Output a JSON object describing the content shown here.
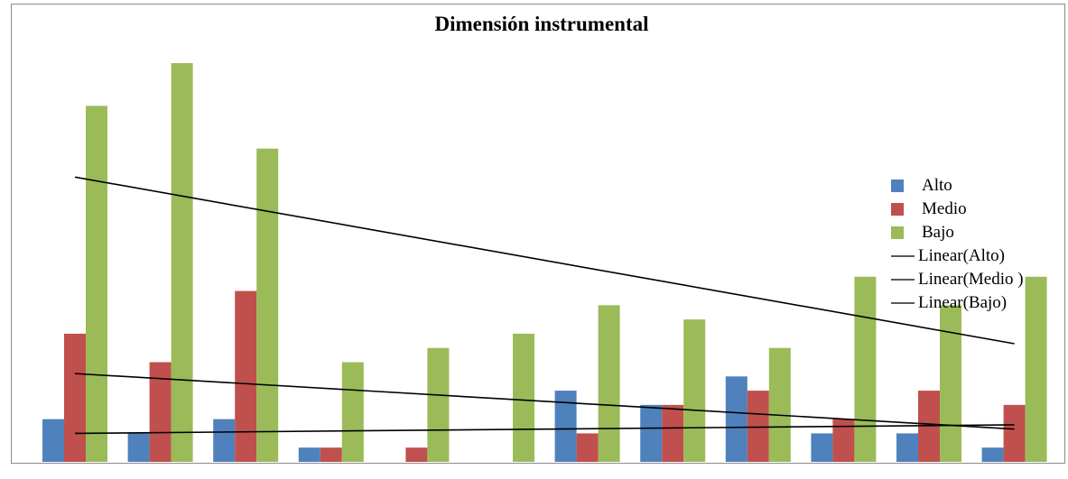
{
  "chart_data": {
    "type": "bar",
    "title": "Dimensión instrumental",
    "xlabel": "",
    "ylabel": "",
    "categories": [
      "",
      "",
      "",
      "",
      "",
      "",
      "",
      "",
      "",
      "",
      "",
      ""
    ],
    "ylim": [
      0,
      28
    ],
    "grid": false,
    "legend_position": "right",
    "series": [
      {
        "name": "Alto",
        "color": "#4f81bd",
        "values": [
          3,
          2,
          3,
          1,
          0,
          0,
          5,
          4,
          6,
          2,
          2,
          1
        ]
      },
      {
        "name": "Medio",
        "color": "#c0504d",
        "values": [
          9,
          7,
          12,
          1,
          1,
          0,
          2,
          4,
          5,
          3,
          5,
          4
        ]
      },
      {
        "name": "Bajo",
        "color": "#9bbb59",
        "values": [
          25,
          28,
          22,
          7,
          8,
          9,
          11,
          10,
          8,
          13,
          11,
          13
        ]
      }
    ],
    "trendlines": [
      {
        "name": "Linear(Alto)",
        "type": "linear",
        "start": 2.0,
        "end": 2.6
      },
      {
        "name": "Linear(Medio )",
        "type": "linear",
        "start": 6.2,
        "end": 2.3
      },
      {
        "name": "Linear(Bajo)",
        "type": "linear",
        "start": 20.0,
        "end": 8.3
      }
    ]
  }
}
